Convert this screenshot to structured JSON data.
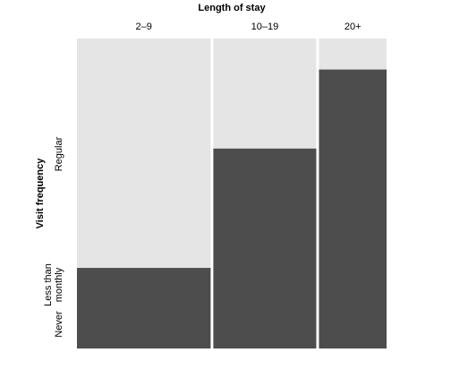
{
  "chart_data": {
    "type": "mosaic",
    "title": "Length of stay",
    "xlabel": "Length of stay",
    "ylabel": "Visit frequency",
    "categories": [
      "2–9",
      "10–19",
      "20+"
    ],
    "column_widths": [
      0.435,
      0.335,
      0.22
    ],
    "y_levels": [
      "Never",
      "Less than monthly",
      "Regular"
    ],
    "y_level_lines": [
      [
        "Never"
      ],
      [
        "Less than",
        "monthly"
      ],
      [
        "Regular"
      ]
    ],
    "series": [
      {
        "name": "Never / Less than monthly",
        "values": [
          0.26,
          0.645,
          0.9
        ]
      },
      {
        "name": "Regular",
        "values": [
          0.74,
          0.355,
          0.1
        ]
      }
    ],
    "colors": {
      "lower": "#4d4d4d",
      "upper": "#e5e5e5",
      "background": "#ffffff"
    }
  }
}
